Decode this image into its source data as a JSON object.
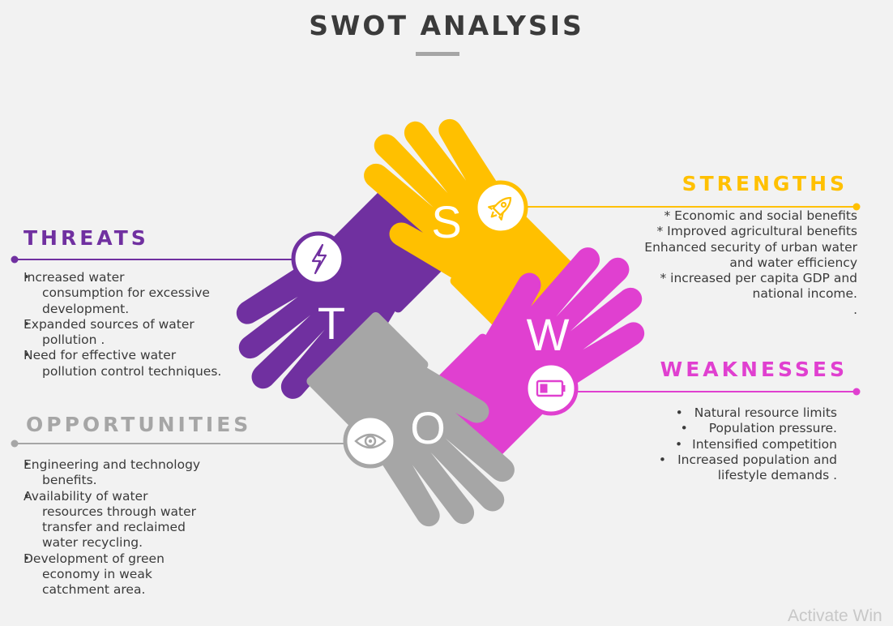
{
  "title": "SWOT ANALYSIS",
  "colors": {
    "strengths": "#ffc000",
    "weaknesses": "#e040d0",
    "opportunities": "#a6a6a6",
    "threats": "#7030a0"
  },
  "quadrants": {
    "strengths": {
      "letter": "S",
      "heading": "STRENGTHS",
      "icon": "rocket-icon",
      "items": [
        "*   Economic and social benefits",
        "*   Improved agricultural benefits",
        "Enhanced security of urban water",
        "and water efficiency",
        "*  increased per capita GDP and",
        "national income.",
        "."
      ]
    },
    "weaknesses": {
      "letter": "W",
      "heading": "WEAKNESSES",
      "icon": "battery-icon",
      "items": [
        "Natural resource limits",
        "Population pressure.",
        "Intensified competition",
        "Increased population and",
        "lifestyle demands ."
      ]
    },
    "opportunities": {
      "letter": "O",
      "heading": "OPPORTUNITIES",
      "icon": "eye-icon",
      "items": [
        "Engineering and technology",
        "benefits.",
        "Availability of water",
        "resources  through water",
        "transfer and reclaimed",
        "water recycling.",
        "Development of green",
        "economy in weak",
        "catchment area."
      ]
    },
    "threats": {
      "letter": "T",
      "heading": "THREATS",
      "icon": "lightning-icon",
      "items": [
        "Increased water",
        "consumption for excessive",
        "development.",
        "Expanded sources of water",
        "pollution .",
        "Need for effective water",
        "pollution control techniques."
      ]
    }
  },
  "watermark": "Activate Win"
}
